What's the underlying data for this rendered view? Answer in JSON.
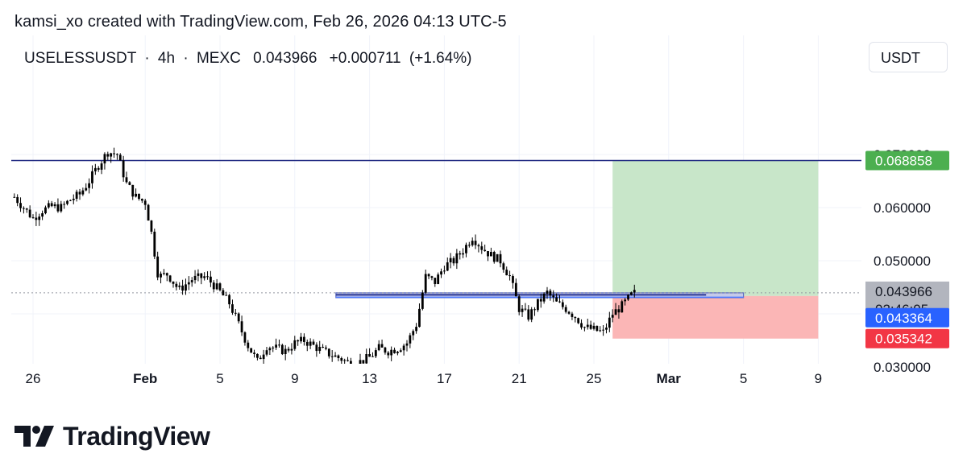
{
  "header": {
    "attribution": "kamsi_xo created with TradingView.com, Feb 26, 2026 04:13 UTC-5"
  },
  "symbol": {
    "ticker": "USELESSUSDT",
    "interval": "4h",
    "exchange": "MEXC",
    "last_price": "0.043966",
    "change": "+0.000711",
    "change_pct": "(+1.64%)",
    "separator": "·"
  },
  "currency_button": "USDT",
  "brand": {
    "wordmark": "TradingView"
  },
  "colors": {
    "candle": "#000000",
    "take_profit_fill": "#c8e6c9",
    "stop_loss_fill": "#fbb6b6",
    "target_line": "#1a237e",
    "entry_line": "#2962ff",
    "target_label_bg": "#4caf50",
    "entry_label_bg": "#2962ff",
    "stop_label_bg": "#f23645",
    "last_price_label_bg": "#b2b5be"
  },
  "chart_data": {
    "type": "candlestick",
    "y_axis": {
      "ticks": [
        "0.030000",
        "0.050000",
        "0.060000"
      ],
      "tick_values": [
        0.03,
        0.05,
        0.06
      ],
      "obscured_tick": "0.070000",
      "range": [
        0.0265,
        0.0745
      ]
    },
    "x_axis": {
      "ticks": [
        "26",
        "Feb",
        "5",
        "9",
        "13",
        "17",
        "21",
        "25",
        "Mar",
        "5",
        "9"
      ],
      "bold_ticks": [
        "Feb",
        "Mar"
      ],
      "tick_days": [
        0,
        6,
        10,
        14,
        18,
        22,
        26,
        30,
        34,
        38,
        42
      ],
      "start": "Jan 26",
      "range_days": [
        -1,
        45
      ]
    },
    "price_labels": {
      "target": "0.068858",
      "last": "0.043966",
      "countdown": "02:46:05",
      "entry": "0.043364",
      "stop": "0.035342"
    },
    "position": {
      "type": "long",
      "entry": 0.043364,
      "target": 0.068858,
      "stop": 0.035342,
      "start_day": 31.0,
      "end_day": 42.0
    },
    "horizontal_line": 0.068858,
    "support_zone": {
      "from_day": 16.2,
      "to_day": 38.0,
      "price": 0.0435
    },
    "close_path": [
      [
        -1.0,
        0.062
      ],
      [
        -0.5,
        0.06
      ],
      [
        0.0,
        0.058
      ],
      [
        0.5,
        0.0595
      ],
      [
        1.0,
        0.0602
      ],
      [
        1.5,
        0.06
      ],
      [
        2.0,
        0.0615
      ],
      [
        2.5,
        0.0625
      ],
      [
        3.0,
        0.065
      ],
      [
        3.5,
        0.068
      ],
      [
        4.0,
        0.0705
      ],
      [
        4.5,
        0.07
      ],
      [
        5.0,
        0.0645
      ],
      [
        5.5,
        0.062
      ],
      [
        6.0,
        0.061
      ],
      [
        6.3,
        0.056
      ],
      [
        6.7,
        0.047
      ],
      [
        7.2,
        0.0475
      ],
      [
        7.8,
        0.0445
      ],
      [
        8.5,
        0.0465
      ],
      [
        9.2,
        0.047
      ],
      [
        9.8,
        0.045
      ],
      [
        10.5,
        0.042
      ],
      [
        11.0,
        0.038
      ],
      [
        11.5,
        0.034
      ],
      [
        12.0,
        0.031
      ],
      [
        12.5,
        0.034
      ],
      [
        13.0,
        0.0335
      ],
      [
        13.5,
        0.033
      ],
      [
        14.0,
        0.0345
      ],
      [
        14.5,
        0.035
      ],
      [
        15.0,
        0.034
      ],
      [
        15.5,
        0.033
      ],
      [
        16.0,
        0.0322
      ],
      [
        16.5,
        0.0315
      ],
      [
        17.0,
        0.0305
      ],
      [
        17.5,
        0.031
      ],
      [
        18.0,
        0.0318
      ],
      [
        18.5,
        0.0335
      ],
      [
        19.0,
        0.033
      ],
      [
        19.5,
        0.0335
      ],
      [
        20.0,
        0.0345
      ],
      [
        20.5,
        0.038
      ],
      [
        21.0,
        0.047
      ],
      [
        21.5,
        0.046
      ],
      [
        22.0,
        0.049
      ],
      [
        22.5,
        0.05
      ],
      [
        23.0,
        0.052
      ],
      [
        23.5,
        0.0545
      ],
      [
        24.0,
        0.0525
      ],
      [
        24.5,
        0.051
      ],
      [
        25.0,
        0.05
      ],
      [
        25.5,
        0.047
      ],
      [
        26.0,
        0.041
      ],
      [
        26.5,
        0.0395
      ],
      [
        27.0,
        0.042
      ],
      [
        27.5,
        0.044
      ],
      [
        28.0,
        0.042
      ],
      [
        28.5,
        0.041
      ],
      [
        29.0,
        0.0395
      ],
      [
        29.5,
        0.0375
      ],
      [
        30.0,
        0.037
      ],
      [
        30.5,
        0.0365
      ],
      [
        31.0,
        0.04
      ],
      [
        31.5,
        0.0415
      ],
      [
        32.0,
        0.0435
      ],
      [
        32.2,
        0.04397
      ]
    ]
  }
}
